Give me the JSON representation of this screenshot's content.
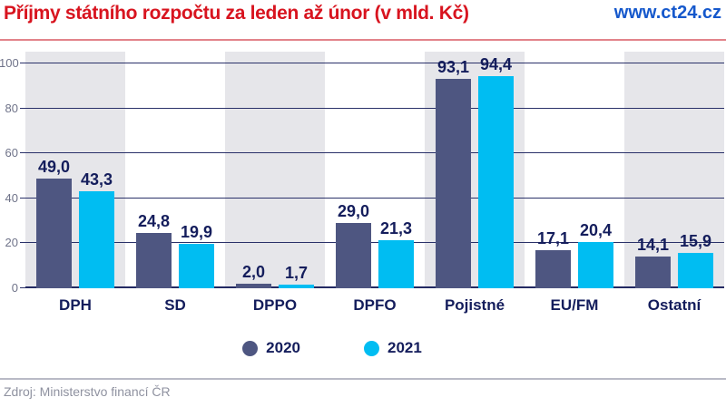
{
  "header": {
    "title": "Příjmy státního rozpočtu za leden až únor (v mld. Kč)",
    "site": "www.ct24.cz"
  },
  "chart_data": {
    "type": "bar",
    "title": "Příjmy státního rozpočtu za leden až únor (v mld. Kč)",
    "xlabel": "",
    "ylabel": "",
    "categories": [
      "DPH",
      "SD",
      "DPPO",
      "DPFO",
      "Pojistné",
      "EU/FM",
      "Ostatní"
    ],
    "series": [
      {
        "name": "2020",
        "color": "#4e5681",
        "values": [
          49.0,
          24.8,
          2.0,
          29.0,
          93.1,
          17.1,
          14.1
        ]
      },
      {
        "name": "2021",
        "color": "#00bdf2",
        "values": [
          43.3,
          19.9,
          1.7,
          21.3,
          94.4,
          20.4,
          15.9
        ]
      }
    ],
    "ylim": [
      0,
      100
    ],
    "yticks": [
      0,
      20,
      40,
      60,
      80,
      100
    ],
    "grid": true,
    "band_shading": "alternating-gray-starting-first",
    "legend_position": "bottom",
    "decimal_separator": "comma"
  },
  "footer": {
    "source": "Zdroj: Ministerstvo financí ČR"
  },
  "colors": {
    "title_red": "#d8141f",
    "link_blue": "#1558cc",
    "label_navy": "#141d5c",
    "grid_navy": "#2a3169",
    "band_gray": "#e6e6ea",
    "tick_gray": "#6f7389",
    "source_gray": "#8f92a0",
    "header_rule": "#e2838a",
    "footer_rule": "#b9bac6"
  }
}
